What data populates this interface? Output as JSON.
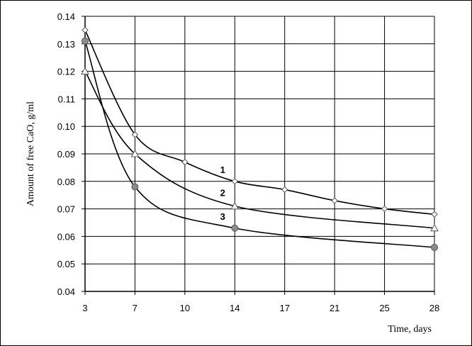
{
  "chart_data": {
    "type": "line",
    "title": "",
    "xlabel": "Time, days",
    "ylabel": "Amount of free CaO, g/ml",
    "x_ticks": [
      3,
      7,
      10,
      14,
      17,
      21,
      25,
      28
    ],
    "y_ticks": [
      "0.04",
      "0.05",
      "0.06",
      "0.07",
      "0.08",
      "0.09",
      "0.10",
      "0.11",
      "0.12",
      "0.13",
      "0.14"
    ],
    "ylim": [
      0.04,
      0.14
    ],
    "grid": true,
    "legend": "none",
    "x_axis_scale": "categorical, evenly spaced ticks",
    "series": [
      {
        "name": "1",
        "marker": "diamond-open",
        "x": [
          3,
          7,
          10,
          14,
          17,
          21,
          25,
          28
        ],
        "values": [
          0.135,
          0.097,
          0.087,
          0.08,
          0.077,
          0.073,
          0.07,
          0.068
        ]
      },
      {
        "name": "2",
        "marker": "triangle-open",
        "x": [
          3,
          7,
          14,
          28
        ],
        "values": [
          0.12,
          0.09,
          0.071,
          0.063
        ]
      },
      {
        "name": "3",
        "marker": "circle-gray",
        "x": [
          3,
          7,
          14,
          28
        ],
        "values": [
          0.131,
          0.078,
          0.063,
          0.056
        ]
      }
    ],
    "colors": {
      "line": "#000000",
      "grid": "#000000",
      "marker_fill_open": "#ffffff",
      "marker_fill_gray": "#8c8c8c"
    }
  }
}
